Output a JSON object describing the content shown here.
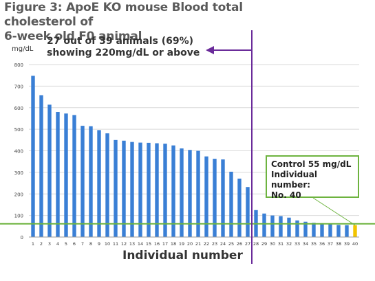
{
  "title_line1": "Figure 3: ApoE KO mouse Blood total cholesterol of",
  "title_line2": "6-week old F0 animal",
  "annotation_line1": "27 out of 39 animals (69%)",
  "annotation_line2": "showing 220mg/dL or above",
  "control_box": {
    "line1": "Control 55 mg/dL",
    "line2": "Individual number:",
    "line3": "No. 40"
  },
  "colors": {
    "bar": "#3a7fd5",
    "control_bar": "#f2c400",
    "threshold_line": "#6db33f",
    "divider_line": "#6a2b9a",
    "title": "#5a5a5a"
  },
  "chart_data": {
    "type": "bar",
    "xlabel": "Individual number",
    "ylabel": "mg/dL",
    "ylim": [
      0,
      800
    ],
    "yticks": [
      0,
      100,
      200,
      300,
      400,
      500,
      600,
      700,
      800
    ],
    "grid": true,
    "categories": [
      "1",
      "2",
      "3",
      "4",
      "5",
      "6",
      "7",
      "8",
      "9",
      "10",
      "11",
      "12",
      "13",
      "14",
      "15",
      "16",
      "17",
      "18",
      "19",
      "20",
      "21",
      "22",
      "23",
      "24",
      "25",
      "26",
      "27",
      "28",
      "29",
      "30",
      "31",
      "32",
      "33",
      "34",
      "35",
      "36",
      "37",
      "38",
      "39",
      "40"
    ],
    "values": [
      748,
      658,
      614,
      580,
      573,
      566,
      516,
      514,
      496,
      481,
      450,
      447,
      441,
      438,
      437,
      435,
      433,
      425,
      411,
      404,
      400,
      374,
      363,
      360,
      303,
      271,
      232,
      125,
      109,
      100,
      97,
      90,
      77,
      71,
      66,
      64,
      60,
      56,
      55,
      55
    ],
    "highlight_index": 39,
    "threshold_value": 55,
    "divider_after_category": "27"
  }
}
